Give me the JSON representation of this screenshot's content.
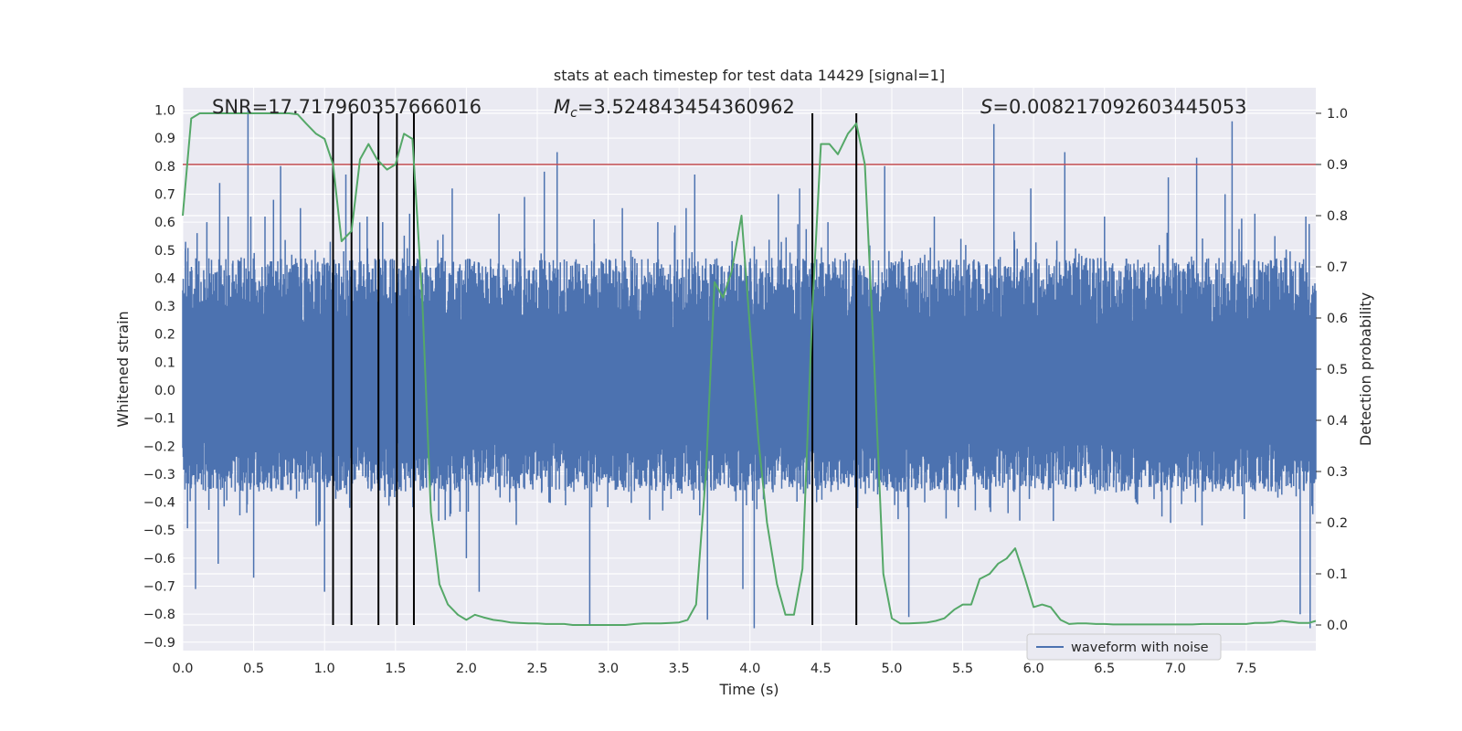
{
  "chart_data": {
    "type": "line",
    "title": "stats at each timestep for test data 14429 [signal=1]",
    "xlabel": "Time (s)",
    "ylabel": "Whitened strain",
    "y2label": "Detection probability",
    "xlim": [
      0.0,
      7.99
    ],
    "ylim": [
      -0.93,
      1.08
    ],
    "y2lim": [
      -0.05,
      1.05
    ],
    "xticks": [
      "0.0",
      "0.5",
      "1.0",
      "1.5",
      "2.0",
      "2.5",
      "3.0",
      "3.5",
      "4.0",
      "4.5",
      "5.0",
      "5.5",
      "6.0",
      "6.5",
      "7.0",
      "7.5"
    ],
    "yticks": [
      "1.0",
      "0.9",
      "0.8",
      "0.7",
      "0.6",
      "0.5",
      "0.4",
      "0.3",
      "0.2",
      "0.1",
      "0.0",
      "−0.1",
      "−0.2",
      "−0.3",
      "−0.4",
      "−0.5",
      "−0.6",
      "−0.7",
      "−0.8",
      "−0.9"
    ],
    "y2ticks": [
      "1.0",
      "0.9",
      "0.8",
      "0.7",
      "0.6",
      "0.5",
      "0.4",
      "0.3",
      "0.2",
      "0.1",
      "0.0"
    ],
    "annotations": {
      "snr": "SNR=17.717960357666016",
      "mc_symbol": "M",
      "mc_sub": "c",
      "mc_value": "=3.524843454360962",
      "s_symbol": "S",
      "s_value": "=0.008217092603445053"
    },
    "legend": {
      "label": "waveform with noise",
      "position": "lower-right"
    },
    "threshold": {
      "value": 0.9,
      "axis": "right",
      "color": "#c44e52"
    },
    "vlines_x": [
      1.06,
      1.19,
      1.38,
      1.51,
      1.63,
      4.44,
      4.75
    ],
    "vline_color": "#000000",
    "series": [
      {
        "name": "waveform with noise",
        "axis": "left",
        "color": "#4c72b0",
        "envelope": {
          "typical_upper": 0.43,
          "typical_lower": -0.33
        },
        "spike_samples": [
          {
            "x": 0.02,
            "y": 0.53
          },
          {
            "x": 0.09,
            "y": -0.71
          },
          {
            "x": 0.17,
            "y": 0.6
          },
          {
            "x": 0.25,
            "y": -0.62
          },
          {
            "x": 0.26,
            "y": 0.74
          },
          {
            "x": 0.32,
            "y": 0.62
          },
          {
            "x": 0.46,
            "y": 1.0
          },
          {
            "x": 0.48,
            "y": 0.62
          },
          {
            "x": 0.5,
            "y": -0.67
          },
          {
            "x": 0.58,
            "y": 0.62
          },
          {
            "x": 0.69,
            "y": 0.8
          },
          {
            "x": 0.64,
            "y": 0.68
          },
          {
            "x": 0.83,
            "y": 0.65
          },
          {
            "x": 1.0,
            "y": -0.72
          },
          {
            "x": 1.04,
            "y": 0.53
          },
          {
            "x": 1.15,
            "y": 0.77
          },
          {
            "x": 1.3,
            "y": 0.62
          },
          {
            "x": 1.41,
            "y": 0.6
          },
          {
            "x": 1.51,
            "y": -0.56
          },
          {
            "x": 1.6,
            "y": 0.63
          },
          {
            "x": 1.9,
            "y": 0.72
          },
          {
            "x": 2.0,
            "y": -0.6
          },
          {
            "x": 2.09,
            "y": -0.72
          },
          {
            "x": 2.23,
            "y": 0.63
          },
          {
            "x": 2.41,
            "y": 0.69
          },
          {
            "x": 2.55,
            "y": 0.78
          },
          {
            "x": 2.64,
            "y": 0.85
          },
          {
            "x": 2.87,
            "y": -0.84
          },
          {
            "x": 2.9,
            "y": 0.61
          },
          {
            "x": 3.1,
            "y": 0.65
          },
          {
            "x": 3.35,
            "y": 0.6
          },
          {
            "x": 3.55,
            "y": 0.65
          },
          {
            "x": 3.61,
            "y": 0.77
          },
          {
            "x": 3.7,
            "y": -0.82
          },
          {
            "x": 3.95,
            "y": -0.71
          },
          {
            "x": 4.03,
            "y": -0.85
          },
          {
            "x": 4.2,
            "y": 0.7
          },
          {
            "x": 4.35,
            "y": 0.72
          },
          {
            "x": 4.55,
            "y": 0.6
          },
          {
            "x": 4.95,
            "y": 0.8
          },
          {
            "x": 5.12,
            "y": -0.81
          },
          {
            "x": 5.3,
            "y": 0.62
          },
          {
            "x": 5.72,
            "y": 0.95
          },
          {
            "x": 5.98,
            "y": 0.72
          },
          {
            "x": 6.22,
            "y": 0.85
          },
          {
            "x": 6.5,
            "y": 0.62
          },
          {
            "x": 6.95,
            "y": 0.76
          },
          {
            "x": 7.15,
            "y": 0.83
          },
          {
            "x": 7.35,
            "y": 0.7
          },
          {
            "x": 7.4,
            "y": 0.96
          },
          {
            "x": 7.56,
            "y": 0.63
          },
          {
            "x": 7.88,
            "y": -0.8
          },
          {
            "x": 7.92,
            "y": 0.62
          },
          {
            "x": 7.95,
            "y": -0.85
          }
        ]
      },
      {
        "name": "detection probability",
        "axis": "right",
        "color": "#55a868",
        "x": [
          0.0,
          0.06,
          0.12,
          0.19,
          0.25,
          0.31,
          0.37,
          0.44,
          0.5,
          0.56,
          0.62,
          0.69,
          0.75,
          0.81,
          0.87,
          0.94,
          1.0,
          1.06,
          1.12,
          1.19,
          1.25,
          1.31,
          1.37,
          1.44,
          1.5,
          1.56,
          1.62,
          1.69,
          1.75,
          1.81,
          1.87,
          1.94,
          2.0,
          2.06,
          2.12,
          2.19,
          2.25,
          2.31,
          2.37,
          2.44,
          2.5,
          2.56,
          2.62,
          2.69,
          2.75,
          2.81,
          2.87,
          2.94,
          3.0,
          3.06,
          3.12,
          3.19,
          3.25,
          3.31,
          3.37,
          3.44,
          3.5,
          3.56,
          3.62,
          3.69,
          3.75,
          3.81,
          3.87,
          3.94,
          4.0,
          4.06,
          4.12,
          4.19,
          4.25,
          4.31,
          4.37,
          4.44,
          4.5,
          4.56,
          4.62,
          4.69,
          4.75,
          4.81,
          4.87,
          4.94,
          5.0,
          5.06,
          5.12,
          5.19,
          5.25,
          5.31,
          5.37,
          5.44,
          5.5,
          5.56,
          5.62,
          5.69,
          5.75,
          5.81,
          5.87,
          5.94,
          6.0,
          6.06,
          6.12,
          6.19,
          6.25,
          6.31,
          6.37,
          6.44,
          6.5,
          6.56,
          6.62,
          6.69,
          6.75,
          6.81,
          6.87,
          6.94,
          7.0,
          7.06,
          7.12,
          7.19,
          7.25,
          7.31,
          7.37,
          7.44,
          7.5,
          7.56,
          7.62,
          7.69,
          7.75,
          7.81,
          7.87,
          7.94,
          7.99
        ],
        "values": [
          0.8,
          0.99,
          1.0,
          1.0,
          1.0,
          1.0,
          1.0,
          1.0,
          1.0,
          1.0,
          1.0,
          1.0,
          1.0,
          0.998,
          0.98,
          0.96,
          0.95,
          0.9,
          0.75,
          0.77,
          0.91,
          0.94,
          0.91,
          0.89,
          0.9,
          0.96,
          0.95,
          0.63,
          0.22,
          0.08,
          0.04,
          0.02,
          0.01,
          0.02,
          0.015,
          0.01,
          0.008,
          0.005,
          0.004,
          0.003,
          0.003,
          0.002,
          0.002,
          0.002,
          0.0,
          0.0,
          0.0,
          0.0,
          0.0,
          0.0,
          0.0,
          0.002,
          0.003,
          0.003,
          0.003,
          0.004,
          0.005,
          0.01,
          0.04,
          0.3,
          0.67,
          0.64,
          0.69,
          0.8,
          0.58,
          0.36,
          0.2,
          0.08,
          0.02,
          0.02,
          0.11,
          0.62,
          0.94,
          0.94,
          0.92,
          0.96,
          0.98,
          0.9,
          0.55,
          0.1,
          0.013,
          0.003,
          0.003,
          0.004,
          0.005,
          0.008,
          0.013,
          0.03,
          0.04,
          0.04,
          0.09,
          0.1,
          0.12,
          0.13,
          0.15,
          0.09,
          0.035,
          0.04,
          0.035,
          0.01,
          0.002,
          0.003,
          0.003,
          0.002,
          0.002,
          0.001,
          0.001,
          0.001,
          0.001,
          0.001,
          0.001,
          0.001,
          0.001,
          0.001,
          0.001,
          0.002,
          0.002,
          0.002,
          0.002,
          0.002,
          0.002,
          0.004,
          0.004,
          0.005,
          0.008,
          0.006,
          0.004,
          0.004,
          0.008
        ]
      }
    ]
  }
}
